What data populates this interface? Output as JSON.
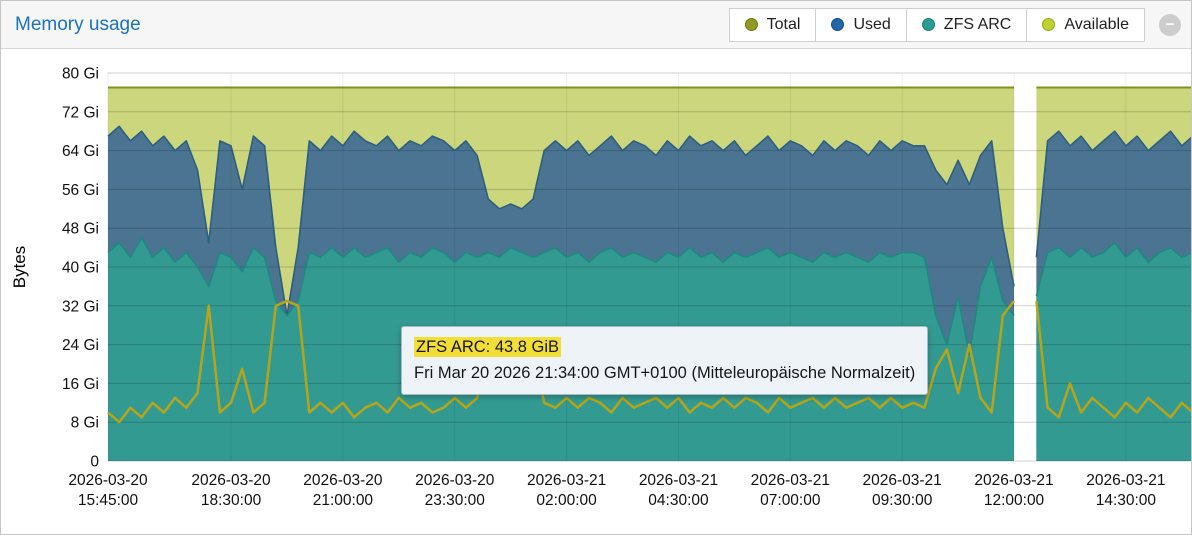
{
  "panel": {
    "title": "Memory usage",
    "collapse_glyph": "−"
  },
  "legend": {
    "items": [
      {
        "id": "total",
        "label": "Total",
        "color": "#8f9c21",
        "ring": "#6a7614"
      },
      {
        "id": "used",
        "label": "Used",
        "color": "#2066a8",
        "ring": "#174e84"
      },
      {
        "id": "zfs-arc",
        "label": "ZFS ARC",
        "color": "#2a9d92",
        "ring": "#1d7d74"
      },
      {
        "id": "available",
        "label": "Available",
        "color": "#bcd22f",
        "ring": "#94a81f"
      }
    ]
  },
  "tooltip": {
    "line1": "ZFS ARC: 43.8 GiB",
    "line2": "Fri Mar 20 2026 21:34:00 GMT+0100 (Mitteleuropäische Normalzeit)",
    "highlight_color": "#f2de35"
  },
  "chart_data": {
    "type": "area",
    "title": "Memory usage",
    "ylabel": "Bytes",
    "y_unit": "Gi",
    "ylim": [
      0,
      80
    ],
    "grid": true,
    "legend_position": "top-right",
    "data_gap_minute": 1230,
    "y_ticks": [
      {
        "v": 80,
        "label": "80 Gi"
      },
      {
        "v": 72,
        "label": "72 Gi"
      },
      {
        "v": 64,
        "label": "64 Gi"
      },
      {
        "v": 56,
        "label": "56 Gi"
      },
      {
        "v": 48,
        "label": "48 Gi"
      },
      {
        "v": 40,
        "label": "40 Gi"
      },
      {
        "v": 32,
        "label": "32 Gi"
      },
      {
        "v": 24,
        "label": "24 Gi"
      },
      {
        "v": 16,
        "label": "16 Gi"
      },
      {
        "v": 8,
        "label": "8 Gi"
      },
      {
        "v": 0,
        "label": "0"
      }
    ],
    "x_ticks": [
      {
        "t": 0,
        "lines": [
          "2026-03-20",
          "15:45:00"
        ]
      },
      {
        "t": 165,
        "lines": [
          "2026-03-20",
          "18:30:00"
        ]
      },
      {
        "t": 315,
        "lines": [
          "2026-03-20",
          "21:00:00"
        ]
      },
      {
        "t": 465,
        "lines": [
          "2026-03-20",
          "23:30:00"
        ]
      },
      {
        "t": 615,
        "lines": [
          "2026-03-21",
          "02:00:00"
        ]
      },
      {
        "t": 765,
        "lines": [
          "2026-03-21",
          "04:30:00"
        ]
      },
      {
        "t": 915,
        "lines": [
          "2026-03-21",
          "07:00:00"
        ]
      },
      {
        "t": 1065,
        "lines": [
          "2026-03-21",
          "09:30:00"
        ]
      },
      {
        "t": 1215,
        "lines": [
          "2026-03-21",
          "12:00:00"
        ]
      },
      {
        "t": 1365,
        "lines": [
          "2026-03-21",
          "14:30:00"
        ]
      }
    ],
    "x_minutes": [
      0,
      15,
      30,
      45,
      60,
      75,
      90,
      105,
      120,
      135,
      150,
      165,
      180,
      195,
      210,
      225,
      240,
      255,
      270,
      285,
      300,
      315,
      330,
      345,
      360,
      375,
      390,
      405,
      420,
      435,
      450,
      465,
      480,
      495,
      510,
      525,
      540,
      555,
      570,
      585,
      600,
      615,
      630,
      645,
      660,
      675,
      690,
      705,
      720,
      735,
      750,
      765,
      780,
      795,
      810,
      825,
      840,
      855,
      870,
      885,
      900,
      915,
      930,
      945,
      960,
      975,
      990,
      1005,
      1020,
      1035,
      1050,
      1065,
      1080,
      1095,
      1110,
      1125,
      1140,
      1155,
      1170,
      1185,
      1200,
      1215,
      1230,
      1245,
      1260,
      1275,
      1290,
      1305,
      1320,
      1335,
      1350,
      1365,
      1380,
      1395,
      1410,
      1425,
      1440,
      1455
    ],
    "series": [
      {
        "name": "Total",
        "unit": "Gi",
        "color": "#7f921d",
        "fill": "#ccd67d",
        "width": 2,
        "values": [
          77,
          77,
          77,
          77,
          77,
          77,
          77,
          77,
          77,
          77,
          77,
          77,
          77,
          77,
          77,
          77,
          77,
          77,
          77,
          77,
          77,
          77,
          77,
          77,
          77,
          77,
          77,
          77,
          77,
          77,
          77,
          77,
          77,
          77,
          77,
          77,
          77,
          77,
          77,
          77,
          77,
          77,
          77,
          77,
          77,
          77,
          77,
          77,
          77,
          77,
          77,
          77,
          77,
          77,
          77,
          77,
          77,
          77,
          77,
          77,
          77,
          77,
          77,
          77,
          77,
          77,
          77,
          77,
          77,
          77,
          77,
          77,
          77,
          77,
          77,
          77,
          77,
          77,
          77,
          77,
          77,
          77,
          null,
          77,
          77,
          77,
          77,
          77,
          77,
          77,
          77,
          77,
          77,
          77,
          77,
          77,
          77,
          77
        ]
      },
      {
        "name": "Used",
        "unit": "Gi",
        "color": "#2d5f7e",
        "fill": "#4b7492",
        "width": 1.6,
        "values": [
          67,
          69,
          66,
          68,
          65,
          67,
          64,
          66,
          60,
          45,
          66,
          65,
          56,
          67,
          65,
          44,
          30,
          44,
          66,
          64,
          67,
          65,
          68,
          66,
          65,
          67,
          64,
          66,
          65,
          67,
          66,
          64,
          66,
          63,
          54,
          52,
          53,
          52,
          54,
          64,
          66,
          64,
          66,
          63,
          65,
          67,
          64,
          66,
          65,
          63,
          66,
          64,
          67,
          65,
          66,
          64,
          66,
          63,
          65,
          67,
          64,
          66,
          65,
          63,
          66,
          64,
          66,
          65,
          63,
          66,
          64,
          66,
          65,
          65,
          60,
          57,
          62,
          57,
          63,
          66,
          48,
          36,
          null,
          42,
          66,
          68,
          65,
          67,
          64,
          66,
          68,
          65,
          67,
          64,
          66,
          68,
          65,
          67
        ]
      },
      {
        "name": "ZFS ARC",
        "unit": "Gi",
        "color": "#1d8a80",
        "fill": "#339a91",
        "width": 1.6,
        "values": [
          43,
          45,
          42,
          46,
          42,
          44,
          41,
          43,
          40,
          36,
          43,
          42,
          39,
          44,
          42,
          33,
          30,
          33,
          43,
          42,
          44,
          42,
          44,
          42,
          43,
          44,
          41,
          43,
          42,
          44,
          43,
          41,
          43,
          42,
          43,
          42,
          44,
          43,
          42,
          43,
          44,
          42,
          43,
          41,
          43,
          44,
          42,
          43,
          42,
          41,
          43,
          42,
          44,
          42,
          43,
          41,
          43,
          42,
          43,
          44,
          42,
          43,
          42,
          41,
          43,
          42,
          43,
          42,
          41,
          43,
          42,
          43,
          43,
          42,
          30,
          24,
          34,
          22,
          36,
          42,
          33,
          30,
          null,
          34,
          43,
          44,
          42,
          44,
          42,
          43,
          45,
          42,
          44,
          41,
          43,
          44,
          42,
          43
        ]
      },
      {
        "name": "Available",
        "unit": "Gi",
        "color": "#b5a51a",
        "fill": "none",
        "width": 2.5,
        "values": [
          10,
          8,
          11,
          9,
          12,
          10,
          13,
          11,
          14,
          32,
          10,
          12,
          19,
          10,
          12,
          32,
          33,
          32,
          10,
          12,
          10,
          12,
          9,
          11,
          12,
          10,
          13,
          11,
          12,
          10,
          11,
          13,
          11,
          13,
          23,
          24,
          24,
          25,
          23,
          12,
          11,
          13,
          11,
          13,
          12,
          10,
          13,
          11,
          12,
          13,
          11,
          13,
          10,
          12,
          11,
          13,
          11,
          13,
          12,
          10,
          13,
          11,
          12,
          13,
          11,
          13,
          11,
          12,
          13,
          11,
          13,
          11,
          12,
          11,
          19,
          23,
          14,
          24,
          13,
          10,
          30,
          33,
          null,
          33,
          11,
          9,
          16,
          10,
          13,
          11,
          9,
          12,
          10,
          13,
          11,
          9,
          12,
          10
        ]
      }
    ]
  }
}
